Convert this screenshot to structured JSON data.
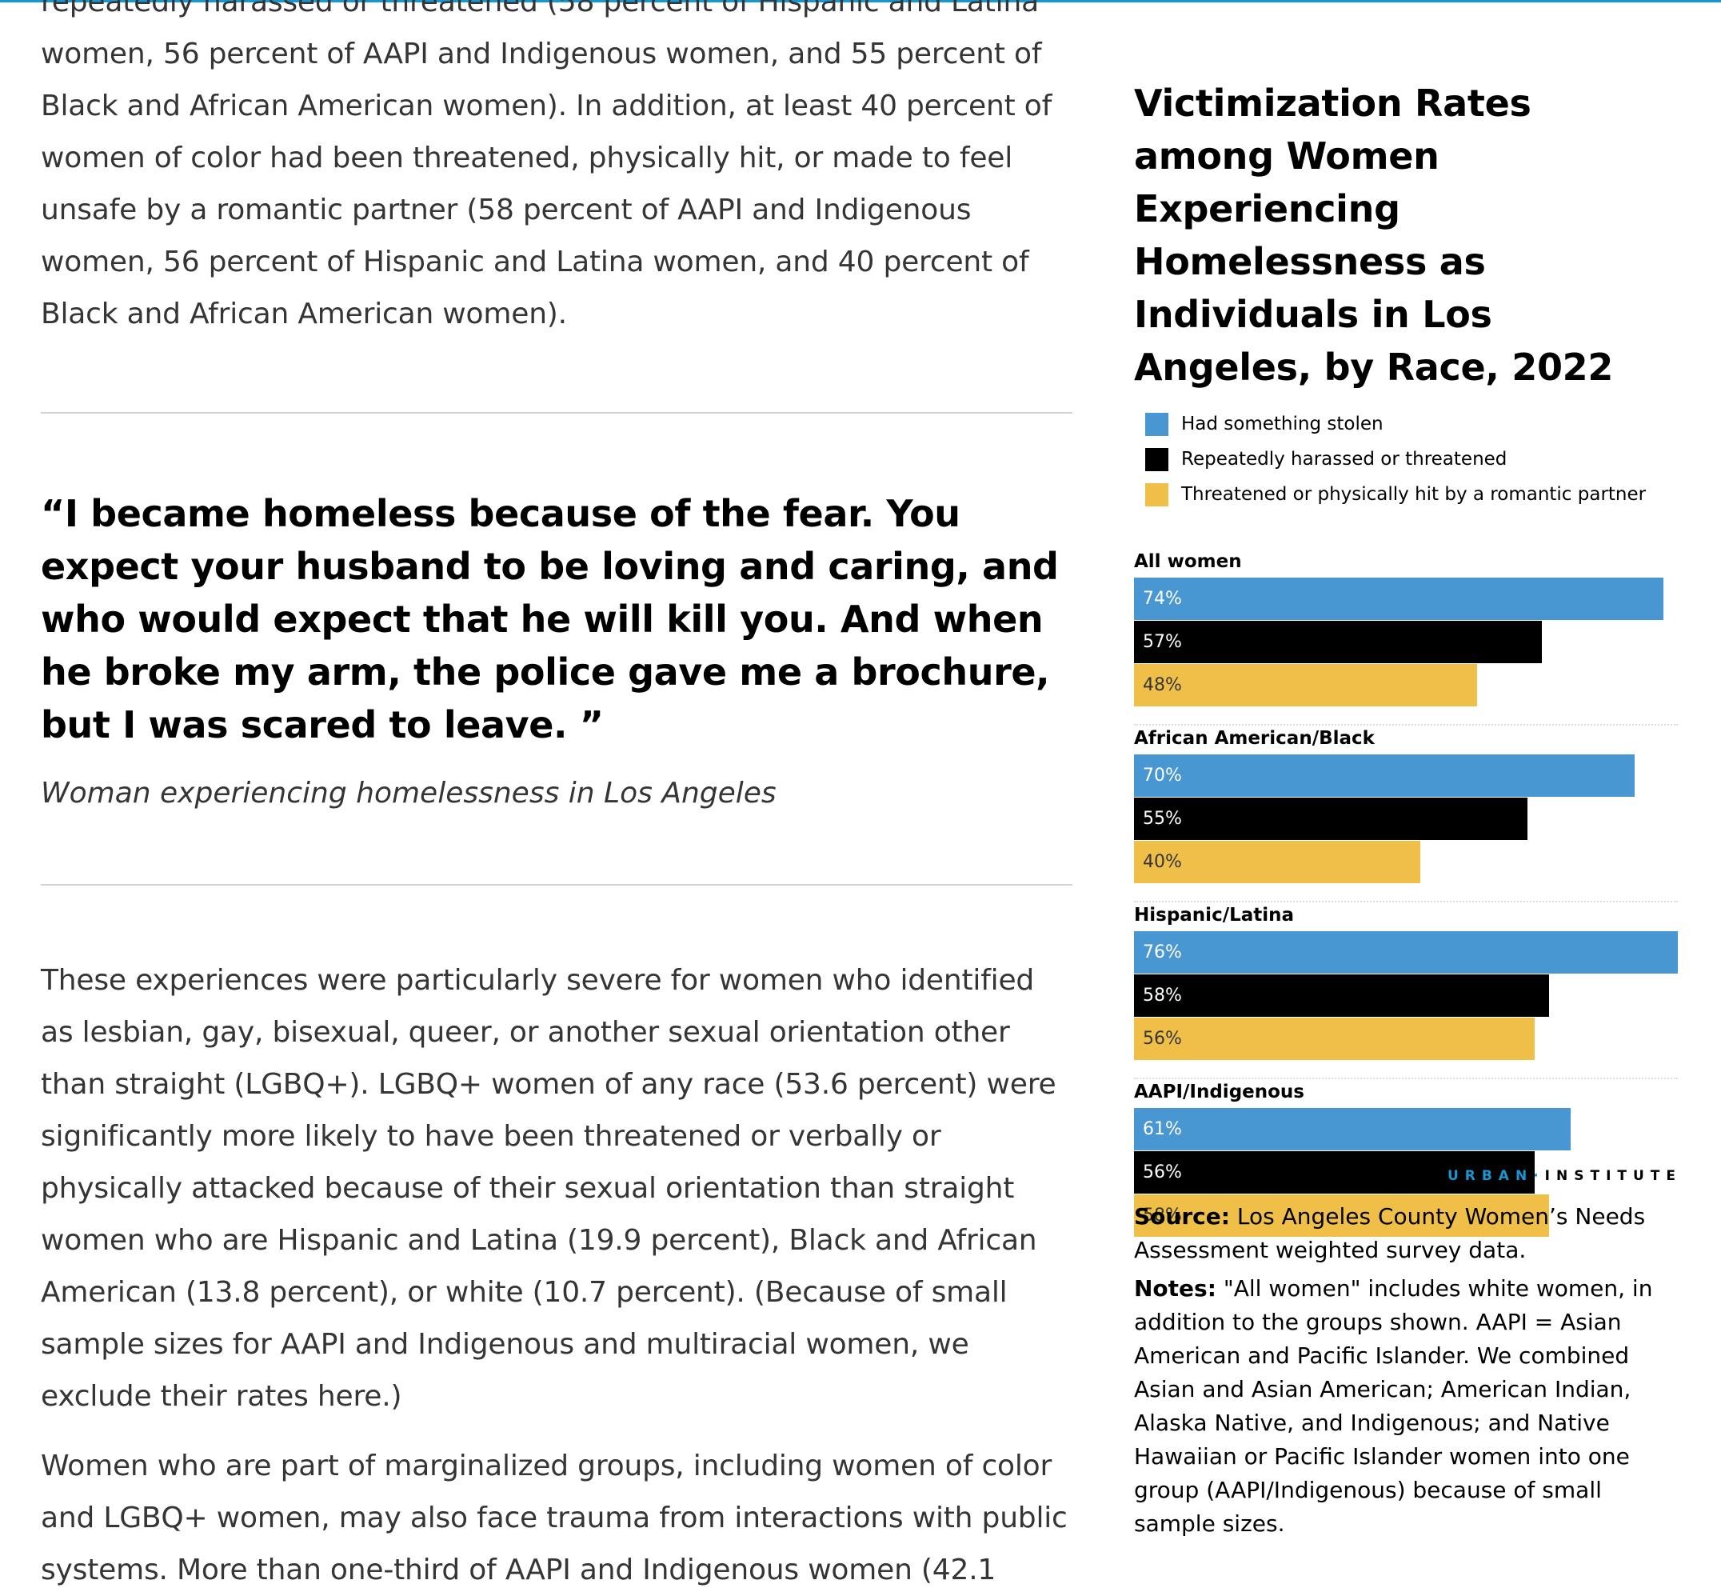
{
  "article": {
    "para_intro": "repeatedly harassed or threatened (58 percent of Hispanic and Latina women, 56 percent of AAPI and Indigenous women, and 55 percent of Black and African American women). In addition, at least 40 percent of women of color had been threatened, physically hit, or made to feel unsafe by a romantic partner (58 percent of AAPI and Indigenous women, 56 percent of Hispanic and Latina women, and 40 percent of Black and African American women).",
    "quote": "“I became homeless because of the fear. You expect your husband to be loving and caring, and who would expect that he will kill you. And when he broke my arm, the police gave me a brochure, but I was scared to leave. ”",
    "quote_attribution": "Woman experiencing homelessness in Los Angeles",
    "para_lgbq": "These experiences were particularly severe for women who identified as lesbian, gay, bisexual, queer, or another sexual orientation other than straight (LGBQ+). LGBQ+ women of any race (53.6 percent) were significantly more likely to have been threatened or verbally or physically attacked because of their sexual orientation than straight women who are Hispanic and Latina (19.9 percent), Black and African American (13.8 percent), or white (10.7 percent). (Because of small sample sizes for AAPI and Indigenous and multiracial women, we exclude their rates here.)",
    "para_marginalized": "Women who are part of marginalized groups, including women of color and LGBQ+ women, may also face trauma from interactions with public systems. More than one-third of AAPI and Indigenous women (42.1"
  },
  "brand": {
    "part1": "URBAN",
    "dot": "·",
    "part2": "INSTITUTE"
  },
  "notes": {
    "source_label": "Source:",
    "source_text": "Los Angeles County Women’s Needs Assessment weighted survey data.",
    "notes_label": "Notes:",
    "notes_text": "\"All women\" includes white women, in addition to the groups shown. AAPI = Asian American and Pacific Islander. We combined Asian and Asian American; American Indian, Alaska Native, and Indigenous; and Native Hawaiian or Pacific Islander women into one group (AAPI/Indigenous) because of small sample sizes."
  },
  "colors": {
    "accent": "#1696d2",
    "series1": "#4897d2",
    "series2": "#000000",
    "series3": "#f0bf48"
  },
  "chart_data": {
    "type": "bar",
    "orientation": "horizontal",
    "title": "Victimization Rates among Women Experiencing Homelessness as Individuals in Los Angeles, by Race, 2022",
    "categories": [
      "All women",
      "African American/Black",
      "Hispanic/Latina",
      "AAPI/Indigenous"
    ],
    "series": [
      {
        "name": "Had something stolen",
        "color": "#4897d2",
        "values": [
          74,
          70,
          76,
          61
        ],
        "labels": [
          "74%",
          "70%",
          "76%",
          "61%"
        ]
      },
      {
        "name": "Repeatedly harassed or threatened",
        "color": "#000000",
        "values": [
          57,
          55,
          58,
          56
        ],
        "labels": [
          "57%",
          "55%",
          "58%",
          "56%"
        ]
      },
      {
        "name": "Threatened or physically hit by a romantic partner",
        "color": "#f0bf48",
        "values": [
          48,
          40,
          56,
          58
        ],
        "labels": [
          "48%",
          "40%",
          "56%",
          "58%"
        ]
      }
    ],
    "xlim": [
      0,
      76
    ],
    "unit": "%",
    "legend_position": "top",
    "grid": false
  }
}
